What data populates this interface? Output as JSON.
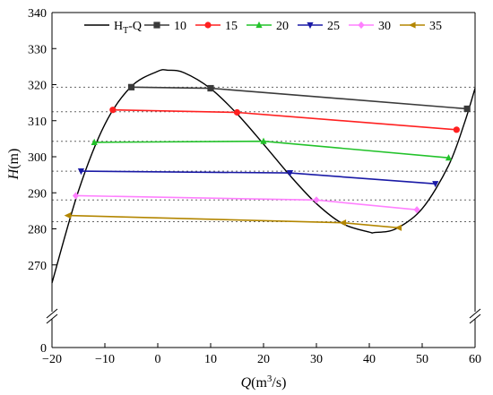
{
  "chart_data": {
    "type": "line",
    "xlabel": {
      "italic": "Q",
      "rest": "(m",
      "sup": "3",
      "end": "/s)"
    },
    "ylabel": {
      "italic": "H",
      "rest": "(m)"
    },
    "xlim": [
      -20,
      60
    ],
    "ylim": [
      260,
      340
    ],
    "xticks": [
      -20,
      -10,
      0,
      10,
      20,
      30,
      40,
      50,
      60
    ],
    "yticks_upper": [
      270,
      280,
      290,
      300,
      310,
      320,
      330,
      340
    ],
    "ytick_zero": "0",
    "axis_break": true,
    "curve": {
      "name": "Ht-Q",
      "legend_label": {
        "base": "H",
        "sub": "T",
        "rest": "-Q"
      },
      "color": "#000000",
      "x": [
        -20,
        -15,
        -10,
        -5,
        0,
        2,
        5,
        10,
        15,
        20,
        25,
        30,
        35,
        40,
        41,
        45,
        50,
        55,
        58,
        60
      ],
      "y": [
        265,
        290.5,
        309,
        319.5,
        323.7,
        324.0,
        323.3,
        318.9,
        311.9,
        303.5,
        294.8,
        287.0,
        281.4,
        279.1,
        279.0,
        280.0,
        285.6,
        297.6,
        309.4,
        319.0
      ]
    },
    "series": [
      {
        "name": "10",
        "color": "#3a3a3a",
        "marker": "square",
        "hline": 319.3,
        "x": [
          -5,
          10,
          58.5
        ],
        "y": [
          319.3,
          319.0,
          313.3
        ]
      },
      {
        "name": "15",
        "color": "#ff2020",
        "marker": "circle",
        "hline": 312.5,
        "x": [
          -8.5,
          15,
          56.5
        ],
        "y": [
          313.0,
          312.3,
          307.5
        ]
      },
      {
        "name": "20",
        "color": "#22c22a",
        "marker": "triangle-up",
        "hline": 304.3,
        "x": [
          -12,
          20,
          55
        ],
        "y": [
          304.0,
          304.3,
          299.7
        ]
      },
      {
        "name": "25",
        "color": "#1a1aa6",
        "marker": "triangle-down",
        "hline": 296.0,
        "x": [
          -14.5,
          25,
          52.5
        ],
        "y": [
          296.0,
          295.5,
          292.5
        ]
      },
      {
        "name": "30",
        "color": "#ff80ff",
        "marker": "diamond",
        "hline": 288.0,
        "x": [
          -15.5,
          30,
          49
        ],
        "y": [
          289.2,
          288.0,
          285.3
        ]
      },
      {
        "name": "35",
        "color": "#b38600",
        "marker": "triangle-left",
        "hline": 282.0,
        "x": [
          -17,
          35,
          45.5
        ],
        "y": [
          283.7,
          281.7,
          280.3
        ]
      }
    ],
    "legend_placement": "top"
  }
}
